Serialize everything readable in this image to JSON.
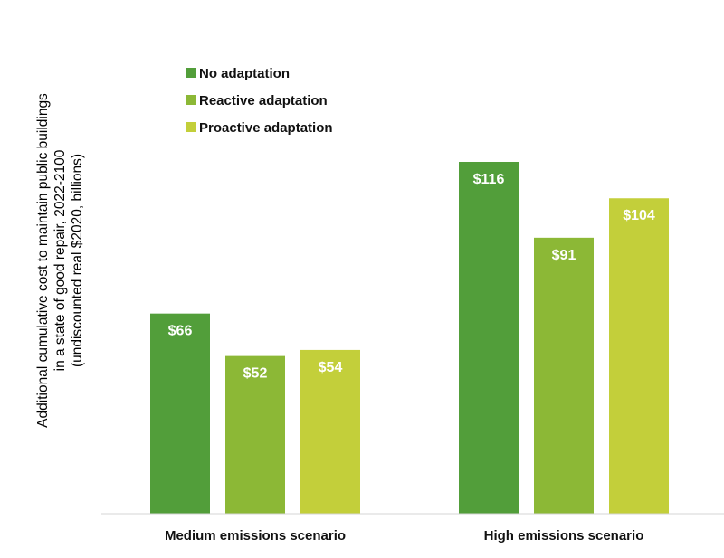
{
  "chart_data": {
    "type": "bar",
    "title": "",
    "ylabel": [
      "Additional cumulative cost to maintain public buildings",
      "in a state of good repair, 2022-2100",
      "(undiscounted real $2020, billions)"
    ],
    "xlabel": "",
    "categories": [
      "Medium emissions scenario",
      "High emissions scenario"
    ],
    "series": [
      {
        "name": "No adaptation",
        "color": "#529e3a",
        "values": [
          66,
          116
        ],
        "labels": [
          "$66",
          "$116"
        ]
      },
      {
        "name": "Reactive adaptation",
        "color": "#8cb836",
        "values": [
          52,
          91
        ],
        "labels": [
          "$52",
          "$91"
        ]
      },
      {
        "name": "Proactive adaptation",
        "color": "#c3cf3a",
        "values": [
          54,
          104
        ],
        "labels": [
          "$54",
          "$104"
        ]
      }
    ],
    "ylim": [
      0,
      150
    ],
    "grid": false,
    "legend": "top-left"
  }
}
